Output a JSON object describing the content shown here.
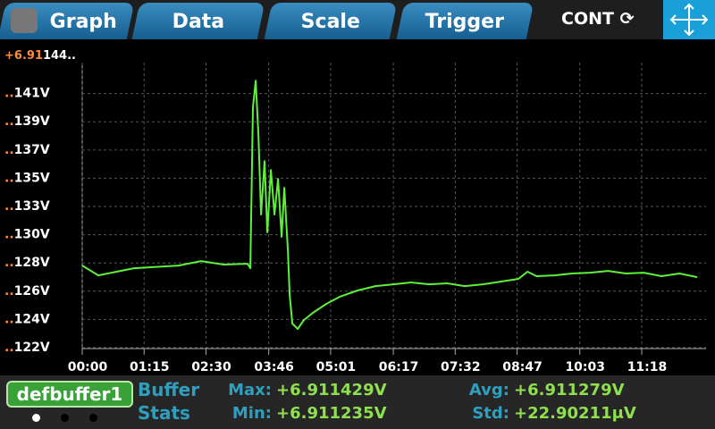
{
  "tabs": [
    "Graph",
    "Data",
    "Scale",
    "Trigger"
  ],
  "mode": "CONT",
  "chart_data": {
    "type": "line",
    "axis_prefix": {
      "lead": "+6.91",
      "rest": "144.."
    },
    "x": [
      0,
      19.5,
      62.8,
      117,
      144.1,
      171.2,
      200.4,
      203.7,
      206.9,
      210.2,
      213.5,
      216.7,
      221,
      224.3,
      228.6,
      233,
      237.3,
      241.6,
      244.9,
      249.2,
      251.4,
      254.6,
      261.1,
      268.7,
      279.5,
      295.8,
      312.1,
      333.7,
      355.4,
      377.1,
      398.7,
      420.4,
      442.1,
      463.7,
      485.4,
      507.1,
      528.7,
      539.6,
      550.4,
      572.1,
      593.8,
      615.4,
      637.1,
      658.8,
      680.4,
      702.1,
      723.8,
      745.4
    ],
    "values": [
      128.18,
      127.45,
      127.98,
      128.18,
      128.51,
      128.25,
      128.31,
      127.98,
      139.88,
      141.86,
      137.9,
      131.95,
      135.91,
      130.63,
      135.25,
      131.95,
      134.59,
      130.3,
      133.93,
      129.3,
      126.0,
      123.88,
      123.49,
      124.15,
      124.68,
      125.34,
      125.87,
      126.33,
      126.66,
      126.79,
      126.93,
      126.79,
      126.86,
      126.66,
      126.79,
      126.99,
      127.19,
      127.72,
      127.39,
      127.45,
      127.59,
      127.65,
      127.78,
      127.59,
      127.65,
      127.39,
      127.59,
      127.32
    ],
    "color": "#5ef03a",
    "xlim": [
      0,
      756
    ],
    "ylim": [
      122.1,
      143.2
    ],
    "xticks": [
      {
        "value": 0,
        "label": "00:00"
      },
      {
        "value": 75,
        "label": "01:15"
      },
      {
        "value": 150,
        "label": "02:30"
      },
      {
        "value": 226,
        "label": "03:46"
      },
      {
        "value": 301,
        "label": "05:01"
      },
      {
        "value": 377,
        "label": "06:17"
      },
      {
        "value": 452,
        "label": "07:32"
      },
      {
        "value": 527,
        "label": "08:47"
      },
      {
        "value": 603,
        "label": "10:03"
      },
      {
        "value": 678,
        "label": "11:18"
      }
    ],
    "yticks": [
      {
        "value": 122.1,
        "label": "..122V"
      },
      {
        "value": 124.19,
        "label": "..124V"
      },
      {
        "value": 126.28,
        "label": "..126V"
      },
      {
        "value": 128.37,
        "label": "..128V"
      },
      {
        "value": 130.46,
        "label": "..130V"
      },
      {
        "value": 132.55,
        "label": "..133V"
      },
      {
        "value": 134.64,
        "label": "..135V"
      },
      {
        "value": 136.73,
        "label": "..137V"
      },
      {
        "value": 138.82,
        "label": "..139V"
      },
      {
        "value": 140.91,
        "label": "..141V"
      }
    ],
    "grid": true
  },
  "buffer": {
    "name": "defbuffer1",
    "title": [
      "Buffer",
      "Stats"
    ],
    "stats": [
      {
        "label": "Max:",
        "value": "+6.911429V"
      },
      {
        "label": "Min:",
        "value": "+6.911235V"
      },
      {
        "label": "Avg:",
        "value": "+6.911279V"
      },
      {
        "label": "Std:",
        "value": "+22.90211μV"
      }
    ]
  }
}
